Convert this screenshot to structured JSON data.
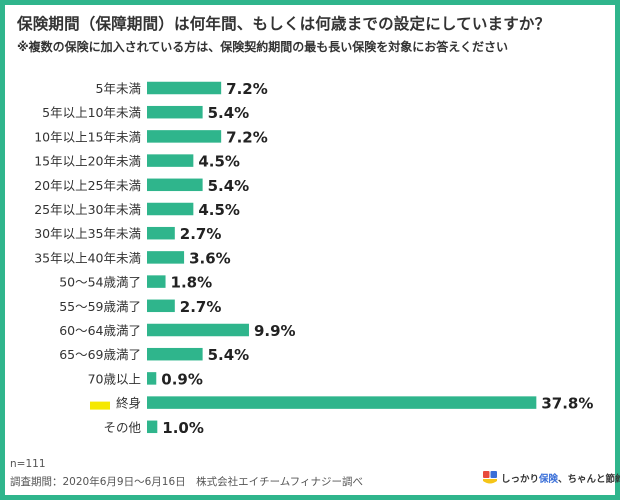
{
  "header": {
    "title": "保険期間（保障期間）は何年間、もしくは何歳までの設定にしていますか？",
    "subtitle": "※複数の保険に加入されている方は、保険契約期間の最も長い保険を対象にお答えください"
  },
  "footer": {
    "n": "n=111",
    "survey": "調査期間：2020年6月9日〜6月16日　株式会社エイチームフィナジー調べ"
  },
  "brand": {
    "prefix": "しっかり",
    "accent": "保険",
    "suffix": "、ちゃんと節約。",
    "logo_icon": "shield-logo-icon",
    "colors": {
      "red": "#e84a3c",
      "blue": "#3a6fd8",
      "yellow": "#f5c518"
    }
  },
  "colors": {
    "bar": "#2fb58c",
    "frame": "#2fb58c",
    "highlight": "#f5e800"
  },
  "chart_data": {
    "type": "bar",
    "orientation": "horizontal",
    "categories": [
      "5年未満",
      "5年以上10年未満",
      "10年以上15年未満",
      "15年以上20年未満",
      "20年以上25年未満",
      "25年以上30年未満",
      "30年以上35年未満",
      "35年以上40年未満",
      "50〜54歳満了",
      "55〜59歳満了",
      "60〜64歳満了",
      "65〜69歳満了",
      "70歳以上",
      "終身",
      "その他"
    ],
    "values": [
      7.2,
      5.4,
      7.2,
      4.5,
      5.4,
      4.5,
      2.7,
      3.6,
      1.8,
      2.7,
      9.9,
      5.4,
      0.9,
      37.8,
      1.0
    ],
    "labels": [
      "7.2%",
      "5.4%",
      "7.2%",
      "4.5%",
      "5.4%",
      "4.5%",
      "2.7%",
      "3.6%",
      "1.8%",
      "2.7%",
      "9.9%",
      "5.4%",
      "0.9%",
      "37.8%",
      "1.0%"
    ],
    "highlighted_category": "終身",
    "unit": "%",
    "grid": false,
    "legend": "none"
  }
}
